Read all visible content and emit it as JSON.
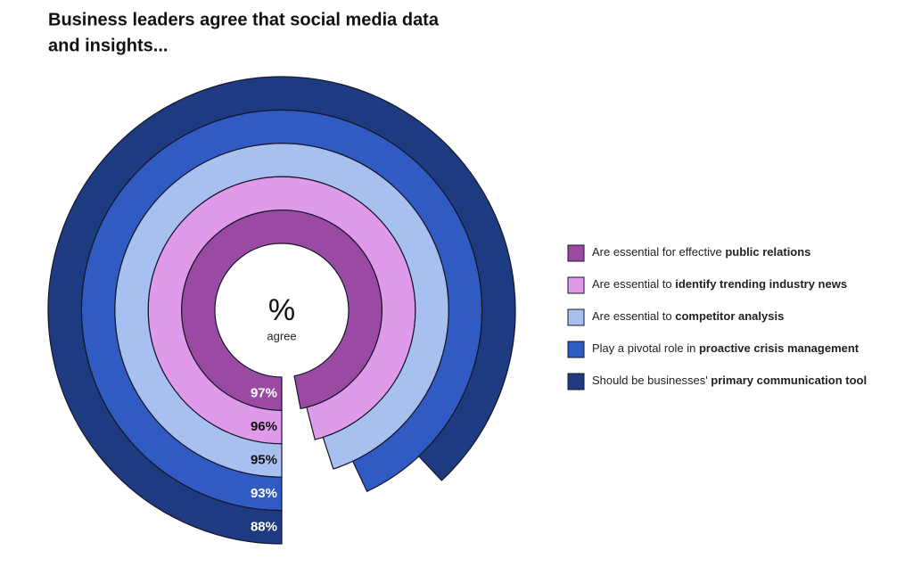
{
  "chart_data": {
    "type": "radial-bar",
    "title": [
      "Business leaders agree that social media data",
      "and insights..."
    ],
    "center_label": "%",
    "center_sublabel": "agree",
    "ylim": [
      0,
      100
    ],
    "series": [
      {
        "name": [
          "Are essential for effective ",
          "public relations"
        ],
        "color": "#9b4aa3",
        "values": [
          97
        ],
        "value_labels": [
          "97%"
        ]
      },
      {
        "name": [
          "Are essential to ",
          "identify trending industry news"
        ],
        "color": "#e09aea",
        "values": [
          96
        ],
        "value_labels": [
          "96%"
        ]
      },
      {
        "name": [
          "Are essential to ",
          "competitor analysis"
        ],
        "color": "#a8c0ef",
        "values": [
          95
        ],
        "value_labels": [
          "95%"
        ]
      },
      {
        "name": [
          "Play a pivotal role in ",
          "proactive crisis management"
        ],
        "color": "#2f5bc2",
        "values": [
          93
        ],
        "value_labels": [
          "93%"
        ]
      },
      {
        "name": [
          "Should be businesses' ",
          "primary communication tool"
        ],
        "color": "#1e3a80",
        "values": [
          88
        ],
        "value_labels": [
          "88%"
        ]
      }
    ]
  }
}
